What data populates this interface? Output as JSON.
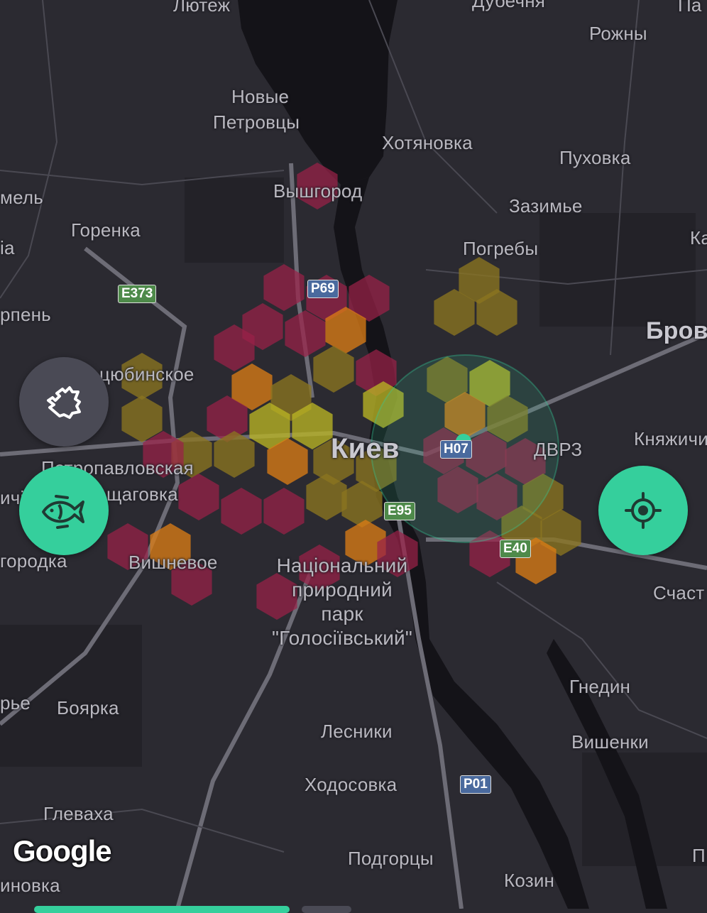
{
  "map": {
    "labels": {
      "lyutezh": "Лютеж",
      "dubechnya": "Дубечня",
      "pa": "Па",
      "rozhny": "Рожны",
      "novye": "Новые",
      "petrovtsy": "Петровцы",
      "khotyanovka": "Хотяновка",
      "pukhovka": "Пуховка",
      "vyshgorod": "Вышгород",
      "zazimye": "Зазимье",
      "mel": "мель",
      "gorenka": "Горенка",
      "ia": "іа",
      "pogreby": "Погребы",
      "ka": "Ка",
      "irpen": "рпень",
      "brov": "Бров",
      "kotsyubinskoe": "цюбинское",
      "knyazhichi": "Княжичи",
      "kiev": "Киев",
      "dvrz": "ДВРЗ",
      "petropavlovskaya": "Петропавловская",
      "borshchagovka": "щаговка",
      "chi": "ичі",
      "gorodka": "городка",
      "vishnevoe": "Вишневое",
      "park1": "Національний",
      "park2": "природний",
      "park3": "парк",
      "park4": "\"Голосіївський\"",
      "schast": "Счаст",
      "gnedin": "Гнедин",
      "rye": "рье",
      "boyarka": "Боярка",
      "lesniki": "Лесники",
      "vishenki": "Вишенки",
      "khodosovka": "Ходосовка",
      "glevakha": "Глеваха",
      "podgortsy": "Подгорцы",
      "inovka": "иновка",
      "kozin": "Козин",
      "p": "П"
    },
    "road_shields": {
      "e373": "E373",
      "p69": "P69",
      "h07": "H07",
      "e95": "E95",
      "e40": "E40",
      "p01": "P01"
    },
    "attribution": "Google",
    "heat_colors": {
      "high": "#9a2148",
      "medium": "#d97b16",
      "low": "#8a7420",
      "lowest": "#b8b324"
    },
    "accent": "#35cf9c",
    "user_location_color": "#35cf9c"
  },
  "controls": {
    "layers_icon": "puzzle-icon",
    "fishing_icon": "fish-icon",
    "locate_icon": "crosshair-icon"
  }
}
